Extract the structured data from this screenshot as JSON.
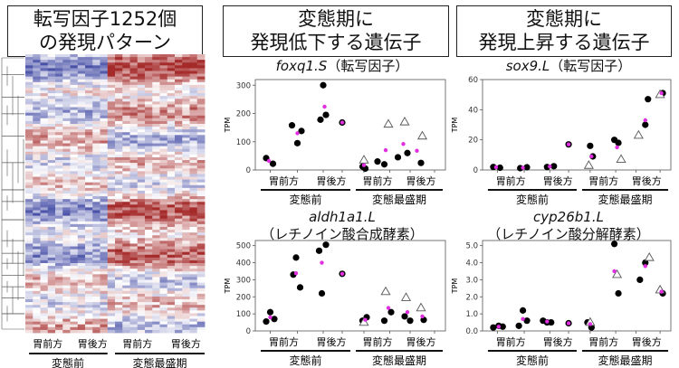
{
  "headings": {
    "left": [
      "転写因子1252個",
      "の発現パターン"
    ],
    "middle": [
      "変態期に",
      "発現低下する遺伝子"
    ],
    "right": [
      "変態期に",
      "発現上昇する遺伝子"
    ]
  },
  "heatmap": {
    "group_labels": [
      "胃前方",
      "胃後方",
      "胃前方",
      "胃後方"
    ],
    "stage_labels": [
      "変態前",
      "変態最盛期"
    ],
    "colors": {
      "high": "#a52a2a",
      "mid": "#ffffff",
      "low": "#4a52a8"
    }
  },
  "chart_data": [
    {
      "id": "foxq1",
      "type": "scatter",
      "gene": "foxq1.S",
      "title_note": "（転写因子）",
      "ylabel": "TPM",
      "ylim": [
        0,
        320
      ],
      "yticks": [
        0,
        100,
        200,
        300
      ],
      "group_labels": [
        "胃前方",
        "胃後方",
        "胃前方",
        "胃後方"
      ],
      "stage_labels": [
        "変態前",
        "変態最盛期"
      ],
      "series": [
        {
          "marker": "dot",
          "points": [
            [
              1.0,
              42
            ],
            [
              1.5,
              22
            ],
            [
              2.9,
              158
            ],
            [
              3.3,
              95
            ],
            [
              3.6,
              138
            ],
            [
              5.0,
              178
            ],
            [
              5.2,
              300
            ],
            [
              5.4,
              195
            ],
            [
              6.6,
              168
            ],
            [
              8.1,
              12
            ],
            [
              8.3,
              5
            ],
            [
              9.2,
              30
            ],
            [
              9.7,
              20
            ],
            [
              10.7,
              45
            ],
            [
              11.4,
              60
            ],
            [
              12.4,
              25
            ]
          ]
        },
        {
          "marker": "triangle",
          "points": [
            [
              8.2,
              35
            ],
            [
              10.0,
              162
            ],
            [
              11.2,
              170
            ],
            [
              12.5,
              120
            ]
          ]
        },
        {
          "marker": "mean",
          "points": [
            [
              1.2,
              32
            ],
            [
              3.3,
              130
            ],
            [
              5.3,
              224
            ],
            [
              6.6,
              168
            ],
            [
              8.2,
              17
            ],
            [
              9.8,
              70
            ],
            [
              11.1,
              92
            ],
            [
              12.1,
              68
            ]
          ]
        }
      ]
    },
    {
      "id": "sox9",
      "type": "scatter",
      "gene": "sox9.L",
      "title_note": "（転写因子）",
      "ylabel": "TPM",
      "ylim": [
        0,
        60
      ],
      "yticks": [
        0,
        20,
        40,
        60
      ],
      "group_labels": [
        "胃前方",
        "胃後方",
        "胃前方",
        "胃後方"
      ],
      "stage_labels": [
        "変態前",
        "変態最盛期"
      ],
      "series": [
        {
          "marker": "dot",
          "points": [
            [
              1.0,
              2
            ],
            [
              1.5,
              1.5
            ],
            [
              3.0,
              1.2
            ],
            [
              3.5,
              1.8
            ],
            [
              5.0,
              2
            ],
            [
              5.5,
              2.5
            ],
            [
              6.6,
              17
            ],
            [
              8.2,
              16
            ],
            [
              8.4,
              9
            ],
            [
              10.0,
              20
            ],
            [
              10.3,
              18
            ],
            [
              12.3,
              30
            ],
            [
              12.5,
              47
            ],
            [
              13.6,
              51
            ]
          ]
        },
        {
          "marker": "triangle",
          "points": [
            [
              8.1,
              3
            ],
            [
              10.5,
              7
            ],
            [
              11.8,
              23
            ],
            [
              13.4,
              50
            ]
          ]
        },
        {
          "marker": "mean",
          "points": [
            [
              1.2,
              1.8
            ],
            [
              3.2,
              1.5
            ],
            [
              5.2,
              2.3
            ],
            [
              6.6,
              17
            ],
            [
              8.3,
              9
            ],
            [
              10.2,
              15
            ],
            [
              12.3,
              33
            ],
            [
              13.5,
              51
            ]
          ]
        }
      ]
    },
    {
      "id": "aldh1a1",
      "type": "scatter",
      "gene": "aldh1a1.L",
      "title_note": "（レチノイン酸合成酵素）",
      "ylabel": "TPM",
      "ylim": [
        0,
        530
      ],
      "yticks": [
        0,
        100,
        200,
        300,
        400,
        500
      ],
      "group_labels": [
        "胃前方",
        "胃後方",
        "胃前方",
        "胃後方"
      ],
      "stage_labels": [
        "変態前",
        "変態最盛期"
      ],
      "series": [
        {
          "marker": "dot",
          "points": [
            [
              1.0,
              55
            ],
            [
              1.3,
              110
            ],
            [
              1.6,
              70
            ],
            [
              3.0,
              330
            ],
            [
              3.2,
              430
            ],
            [
              3.5,
              255
            ],
            [
              4.9,
              470
            ],
            [
              5.1,
              220
            ],
            [
              5.4,
              505
            ],
            [
              6.6,
              335
            ],
            [
              8.1,
              60
            ],
            [
              8.4,
              80
            ],
            [
              9.7,
              60
            ],
            [
              10.2,
              110
            ],
            [
              11.2,
              85
            ],
            [
              11.6,
              60
            ],
            [
              12.6,
              65
            ]
          ]
        },
        {
          "marker": "triangle",
          "points": [
            [
              8.2,
              50
            ],
            [
              9.8,
              230
            ],
            [
              11.3,
              195
            ],
            [
              12.4,
              135
            ]
          ]
        },
        {
          "marker": "mean",
          "points": [
            [
              1.3,
              80
            ],
            [
              3.2,
              338
            ],
            [
              5.1,
              400
            ],
            [
              6.6,
              335
            ],
            [
              8.3,
              65
            ],
            [
              10.0,
              135
            ],
            [
              11.4,
              110
            ],
            [
              12.5,
              85
            ]
          ]
        }
      ]
    },
    {
      "id": "cyp26b1",
      "type": "scatter",
      "gene": "cyp26b1.L",
      "title_note": "（レチノイン酸分解酵素）",
      "ylabel": "TPM",
      "ylim": [
        0,
        5.3
      ],
      "yticks": [
        0.0,
        1.0,
        2.0,
        3.0,
        4.0,
        5.0
      ],
      "group_labels": [
        "胃前方",
        "胃後方",
        "胃前方",
        "胃後方"
      ],
      "stage_labels": [
        "変態前",
        "変態最盛期"
      ],
      "series": [
        {
          "marker": "dot",
          "points": [
            [
              1.0,
              0.2
            ],
            [
              1.4,
              0.3
            ],
            [
              1.7,
              0.25
            ],
            [
              2.9,
              0.3
            ],
            [
              3.2,
              1.2
            ],
            [
              3.5,
              0.6
            ],
            [
              4.7,
              0.6
            ],
            [
              5.0,
              0.5
            ],
            [
              5.3,
              0.5
            ],
            [
              6.6,
              0.45
            ],
            [
              8.0,
              0.5
            ],
            [
              8.3,
              0.2
            ],
            [
              10.0,
              5.1
            ],
            [
              10.3,
              2.2
            ],
            [
              11.9,
              3.0
            ],
            [
              12.3,
              4.0
            ],
            [
              13.6,
              2.2
            ]
          ]
        },
        {
          "marker": "triangle",
          "points": [
            [
              8.2,
              0.5
            ],
            [
              10.2,
              3.3
            ],
            [
              12.6,
              4.3
            ],
            [
              13.4,
              2.4
            ]
          ]
        },
        {
          "marker": "mean",
          "points": [
            [
              1.4,
              0.25
            ],
            [
              3.2,
              0.7
            ],
            [
              5.0,
              0.55
            ],
            [
              6.6,
              0.45
            ],
            [
              8.2,
              0.4
            ],
            [
              10.0,
              3.5
            ],
            [
              12.3,
              3.8
            ],
            [
              13.5,
              2.3
            ]
          ]
        }
      ]
    }
  ]
}
